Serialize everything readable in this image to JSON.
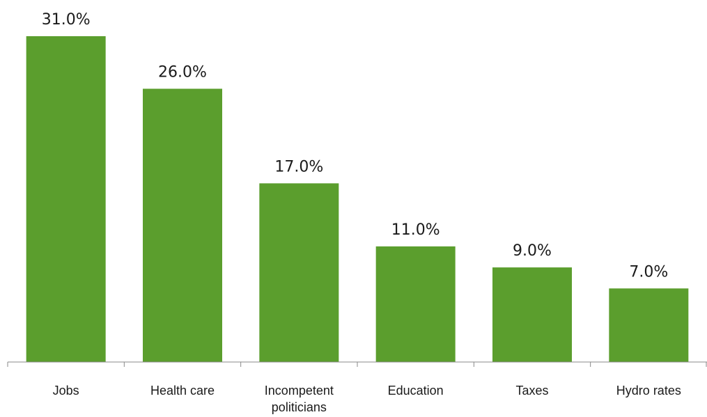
{
  "chart_data": {
    "type": "bar",
    "categories": [
      "Jobs",
      "Health care",
      "Incompetent politicians",
      "Education",
      "Taxes",
      "Hydro rates"
    ],
    "category_lines": [
      [
        "Jobs"
      ],
      [
        "Health care"
      ],
      [
        "Incompetent",
        "politicians"
      ],
      [
        "Education"
      ],
      [
        "Taxes"
      ],
      [
        "Hydro rates"
      ]
    ],
    "values": [
      31.0,
      26.0,
      17.0,
      11.0,
      9.0,
      7.0
    ],
    "value_labels": [
      "31.0%",
      "26.0%",
      "17.0%",
      "11.0%",
      "9.0%",
      "7.0%"
    ],
    "title": "",
    "xlabel": "",
    "ylabel": "",
    "ylim": [
      0,
      31
    ],
    "grid": false,
    "legend": "none",
    "bar_color": "#5b9e2d",
    "axis_color": "#888888"
  }
}
